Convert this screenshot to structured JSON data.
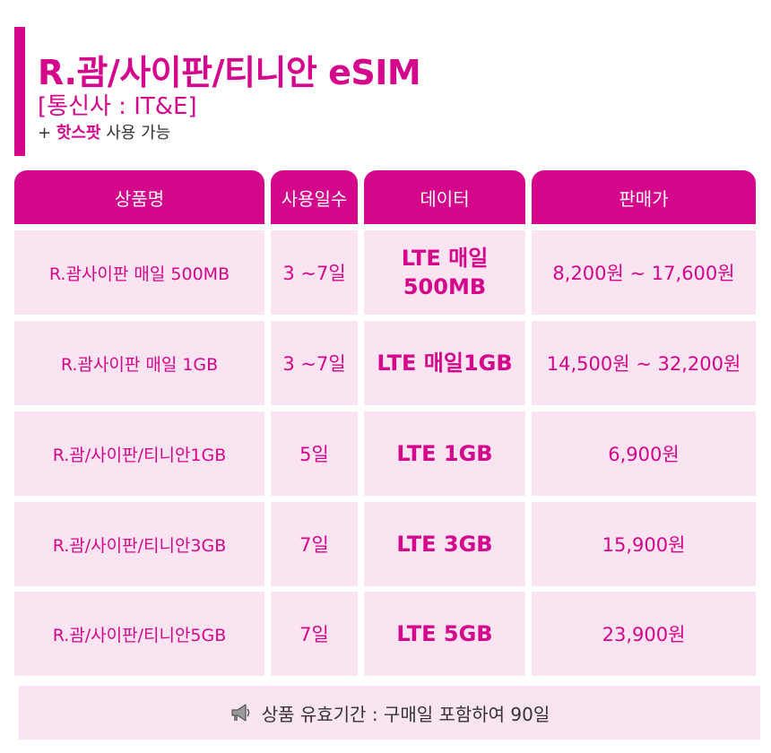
{
  "header": {
    "title": "R.괌/사이판/티니안 eSIM",
    "carrier": "[통신사 : IT&E]",
    "hotspot_prefix": "+ ",
    "hotspot_highlight": "핫스팟",
    "hotspot_suffix": " 사용 가능"
  },
  "table": {
    "headers": [
      "상품명",
      "사용일수",
      "데이터",
      "판매가"
    ],
    "rows": [
      {
        "name": "R.괌사이판 매일 500MB",
        "days": "3 ~7일",
        "data": "LTE 매일 500MB",
        "price": "8,200원 ~ 17,600원"
      },
      {
        "name": "R.괌사이판 매일 1GB",
        "days": "3 ~7일",
        "data": "LTE 매일1GB",
        "price": "14,500원 ~ 32,200원"
      },
      {
        "name": "R.괌/사이판/티니안1GB",
        "days": "5일",
        "data": "LTE 1GB",
        "price": "6,900원"
      },
      {
        "name": "R.괌/사이판/티니안3GB",
        "days": "7일",
        "data": "LTE 3GB",
        "price": "15,900원"
      },
      {
        "name": "R.괌/사이판/티니안5GB",
        "days": "7일",
        "data": "LTE 5GB",
        "price": "23,900원"
      }
    ]
  },
  "footer": {
    "icon": "megaphone-icon",
    "text": "상품 유효기간 : 구매일 포함하여 90일"
  },
  "colors": {
    "accent": "#d4068c",
    "cell_bg": "#fbe4f1"
  }
}
